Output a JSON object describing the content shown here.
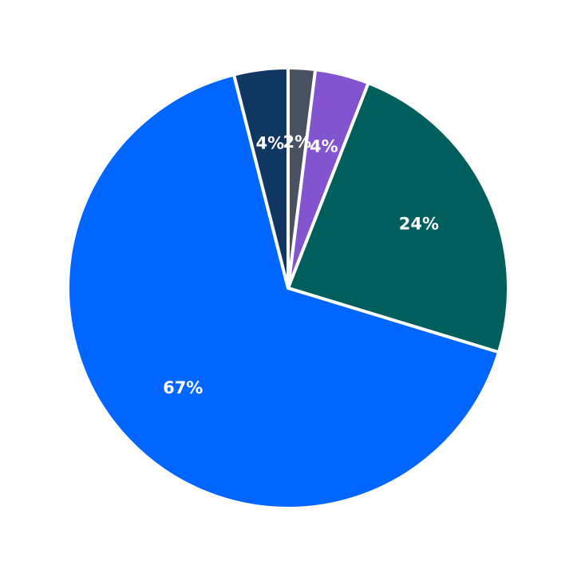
{
  "chart_data": {
    "type": "pie",
    "slices": [
      {
        "value": 2,
        "label": "2%",
        "color": "#4a5160"
      },
      {
        "value": 4,
        "label": "4%",
        "color": "#8354d0"
      },
      {
        "value": 24,
        "label": "24%",
        "color": "#005e5d"
      },
      {
        "value": 67,
        "label": "67%",
        "color": "#0066ff"
      },
      {
        "value": 4,
        "label": "4%",
        "color": "#0f3762"
      }
    ],
    "start_angle": "top",
    "direction": "clockwise",
    "legend": "none"
  }
}
